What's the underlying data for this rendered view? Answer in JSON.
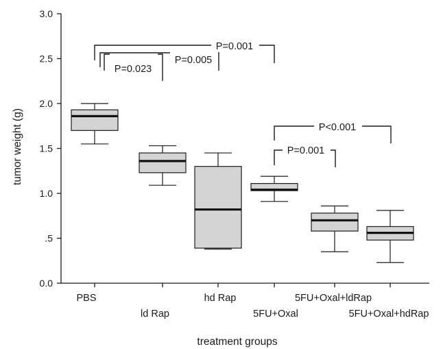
{
  "chart_data": {
    "type": "boxplot",
    "xlabel": "treatment groups",
    "ylabel": "tumor weight (g)",
    "ylim": [
      0,
      3.0
    ],
    "yticks": [
      {
        "value": 0.0,
        "label": "0.0"
      },
      {
        "value": 0.5,
        "label": ".5"
      },
      {
        "value": 1.0,
        "label": "1.0"
      },
      {
        "value": 1.5,
        "label": "1.5"
      },
      {
        "value": 2.0,
        "label": "2.0"
      },
      {
        "value": 2.5,
        "label": "2.5"
      },
      {
        "value": 3.0,
        "label": "3.0"
      }
    ],
    "categories": [
      "PBS",
      "ld Rap",
      "hd Rap",
      "5FU+Oxal",
      "5FU+Oxal+ldRap",
      "5FU+Oxal+hdRap"
    ],
    "boxes": [
      {
        "category": "PBS",
        "min": 1.55,
        "q1": 1.7,
        "median": 1.86,
        "q3": 1.93,
        "max": 2.0
      },
      {
        "category": "ld Rap",
        "min": 1.09,
        "q1": 1.23,
        "median": 1.36,
        "q3": 1.45,
        "max": 1.53
      },
      {
        "category": "hd Rap",
        "min": 0.38,
        "q1": 0.39,
        "median": 0.82,
        "q3": 1.3,
        "max": 1.45
      },
      {
        "category": "5FU+Oxal",
        "min": 0.91,
        "q1": 1.03,
        "median": 1.04,
        "q3": 1.11,
        "max": 1.19
      },
      {
        "category": "5FU+Oxal+ldRap",
        "min": 0.35,
        "q1": 0.58,
        "median": 0.7,
        "q3": 0.78,
        "max": 0.86
      },
      {
        "category": "5FU+Oxal+hdRap",
        "min": 0.23,
        "q1": 0.48,
        "median": 0.56,
        "q3": 0.63,
        "max": 0.81
      }
    ],
    "comparisons": [
      {
        "from": "PBS",
        "to": "ld Rap",
        "label": "P=0.023"
      },
      {
        "from": "PBS",
        "to": "hd Rap",
        "label": "P=0.005"
      },
      {
        "from": "PBS",
        "to": "5FU+Oxal",
        "label": "P=0.001"
      },
      {
        "from": "5FU+Oxal",
        "to": "5FU+Oxal+ldRap",
        "label": "P=0.001"
      },
      {
        "from": "5FU+Oxal",
        "to": "5FU+Oxal+hdRap",
        "label": "P<0.001"
      }
    ],
    "grid": false,
    "legend": "none"
  }
}
